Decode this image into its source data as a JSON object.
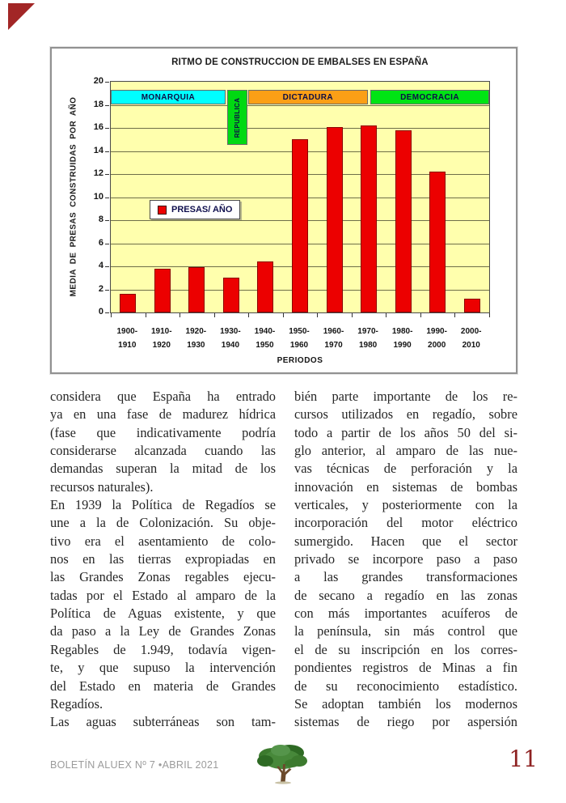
{
  "page_decor": {
    "corner_color": "#a22626"
  },
  "chart_data": {
    "type": "bar",
    "title": "RITMO DE CONSTRUCCION DE EMBALSES EN ESPAÑA",
    "xlabel": "PERIODOS",
    "ylabel": "MEDIA  DE  PRESAS  CONSTRUIDAS  POR  AÑO",
    "legend": {
      "label": "PRESAS/ AÑO",
      "swatch_color": "#ec0000",
      "position": "middle-left"
    },
    "categories": [
      "1900-1910",
      "1910-1920",
      "1920-1930",
      "1930-1940",
      "1940-1950",
      "1950-1960",
      "1960-1970",
      "1970-1980",
      "1980-1990",
      "1990-2000",
      "2000-2010"
    ],
    "values": [
      1.6,
      3.8,
      3.9,
      3.0,
      4.4,
      15.0,
      16.1,
      16.2,
      15.8,
      12.2,
      1.2
    ],
    "ylim": [
      0,
      20
    ],
    "ytick_step": 2,
    "grid": true,
    "bands": [
      {
        "label": "MONARQUIA",
        "color": "#00ffff",
        "x0": 0.0,
        "x1": 0.303,
        "y_top": 19.3,
        "y_bottom": 18.0,
        "vertical_text": false
      },
      {
        "label": "REPUBLICA",
        "color": "#00d912",
        "x0": 0.307,
        "x1": 0.361,
        "y_top": 19.3,
        "y_bottom": 14.5,
        "vertical_text": true
      },
      {
        "label": "DICTADURA",
        "color": "#fb9f16",
        "x0": 0.363,
        "x1": 0.679,
        "y_top": 19.3,
        "y_bottom": 18.0,
        "vertical_text": false
      },
      {
        "label": "DEMOCRACIA",
        "color": "#00e414",
        "x0": 0.686,
        "x1": 1.0,
        "y_top": 19.3,
        "y_bottom": 18.0,
        "vertical_text": false
      }
    ],
    "colors": {
      "bar": "#ec0000",
      "bar_border": "#8c0000",
      "plot_bg": "#ffffad",
      "grid": "#6f6f49",
      "frame": "#4a4a4a",
      "text": "#141414",
      "band_text": "#0d0d45"
    }
  },
  "article": {
    "columns": [
      {
        "lines": [
          {
            "t": "considera que España ha entrado"
          },
          {
            "t": "ya en una fase de madurez hídrica"
          },
          {
            "t": "(fase que indicativamente podría"
          },
          {
            "t": "considerarse alcanzada cuando las"
          },
          {
            "t": "demandas superan la mitad de los"
          },
          {
            "t": "recursos naturales).",
            "end": true
          },
          {
            "t": "En 1939 la Política de Regadíos se"
          },
          {
            "t": "une a la de Colonización. Su obje-"
          },
          {
            "t": "tivo era el asentamiento de colo-"
          },
          {
            "t": "nos en las tierras expropiadas en"
          },
          {
            "t": "las Grandes Zonas regables ejecu-"
          },
          {
            "t": "tadas por el Estado al amparo de la"
          },
          {
            "t": "Política de Aguas existente, y que"
          },
          {
            "t": "da paso a la Ley de Grandes Zonas"
          },
          {
            "t": "Regables de 1.949, todavía vigen-"
          },
          {
            "t": "te, y que supuso la intervención"
          },
          {
            "t": "del Estado en materia de Grandes"
          },
          {
            "t": "Regadíos.",
            "end": true
          },
          {
            "t": "Las aguas subterráneas son tam-"
          }
        ]
      },
      {
        "lines": [
          {
            "t": "bién parte importante de los re-"
          },
          {
            "t": "cursos utilizados en regadío, sobre"
          },
          {
            "t": "todo a partir de los años 50 del si-"
          },
          {
            "t": "glo anterior, al amparo de las nue-"
          },
          {
            "t": "vas técnicas de perforación y la"
          },
          {
            "t": "innovación en sistemas de bombas"
          },
          {
            "t": "verticales, y posteriormente con la"
          },
          {
            "t": "incorporación del motor eléctrico"
          },
          {
            "t": "sumergido. Hacen que el sector"
          },
          {
            "t": "privado se incorpore paso a paso"
          },
          {
            "t": "a las grandes transformaciones"
          },
          {
            "t": "de secano a regadío en las zonas"
          },
          {
            "t": "con más importantes acuíferos de"
          },
          {
            "t": "la península, sin más control que"
          },
          {
            "t": "el de su inscripción en los corres-"
          },
          {
            "t": "pondientes registros de Minas a fin"
          },
          {
            "t": "de su reconocimiento estadístico."
          },
          {
            "t": "Se adoptan también los modernos"
          },
          {
            "t": "sistemas de riego por aspersión"
          }
        ]
      }
    ]
  },
  "footer": {
    "issue": "BOLETÍN ALUEX Nº 7 •ABRIL 2021",
    "page_number": "11",
    "logo_icon": "tree-logo"
  }
}
